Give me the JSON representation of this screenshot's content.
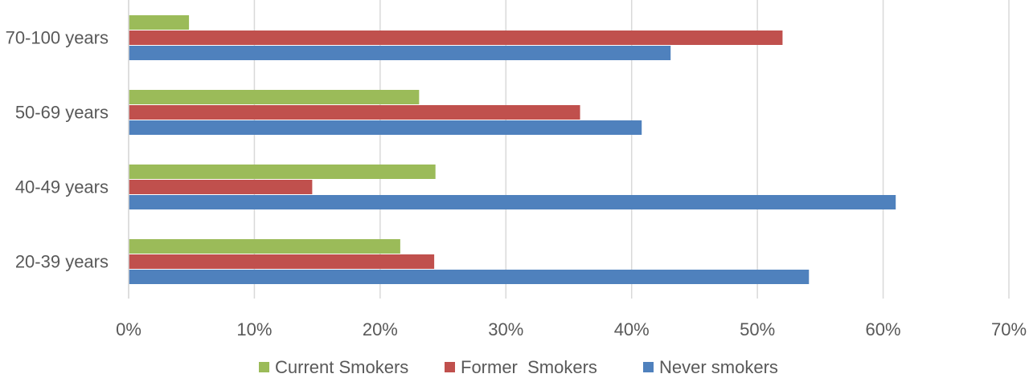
{
  "chart_data": {
    "type": "bar",
    "orientation": "horizontal",
    "categories": [
      "20-39 years",
      "40-49 years",
      "50-69 years",
      "70-100 years"
    ],
    "series": [
      {
        "name": "Current Smokers",
        "color": "#9BBB59",
        "values": [
          21.6,
          24.4,
          23.1,
          4.8
        ]
      },
      {
        "name": "Former  Smokers",
        "color": "#C0504D",
        "values": [
          24.3,
          14.6,
          35.9,
          52.0
        ]
      },
      {
        "name": "Never smokers",
        "color": "#4F81BD",
        "values": [
          54.1,
          61.0,
          40.8,
          43.1
        ]
      }
    ],
    "xlim": [
      0,
      70
    ],
    "xticks": [
      0,
      10,
      20,
      30,
      40,
      50,
      60,
      70
    ],
    "xtick_labels": [
      "0%",
      "10%",
      "20%",
      "30%",
      "40%",
      "50%",
      "60%",
      "70%"
    ],
    "grid": true,
    "legend_position": "bottom",
    "title": "",
    "xlabel": "",
    "ylabel": ""
  }
}
